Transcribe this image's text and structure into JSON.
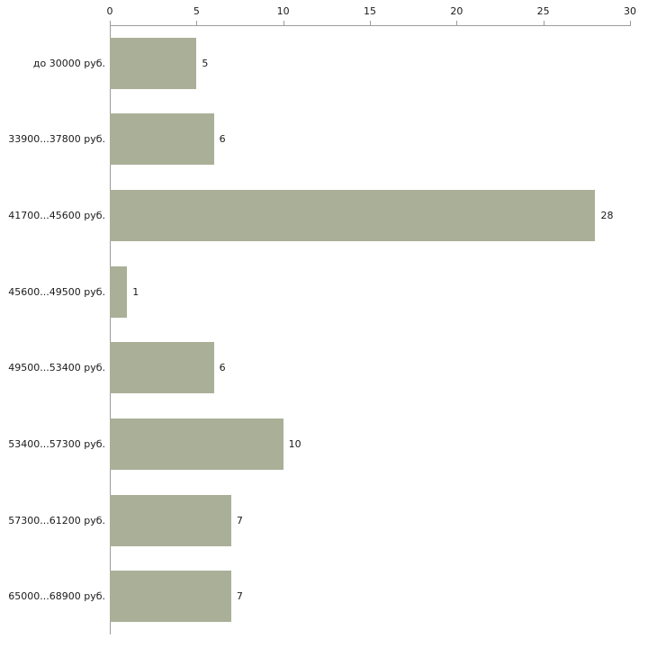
{
  "chart_data": {
    "type": "bar",
    "orientation": "horizontal",
    "title": "",
    "xlabel": "",
    "ylabel": "",
    "categories": [
      "до 30000 руб.",
      "33900...37800 руб.",
      "41700...45600 руб.",
      "45600...49500 руб.",
      "49500...53400 руб.",
      "53400...57300 руб.",
      "57300...61200 руб.",
      "65000...68900 руб."
    ],
    "values": [
      5,
      6,
      28,
      1,
      6,
      10,
      7,
      7
    ],
    "xlim": [
      0,
      30
    ],
    "xticks": [
      0,
      5,
      10,
      15,
      20,
      25,
      30
    ],
    "grid": false,
    "legend": false,
    "bar_color": "#a9b097",
    "axis_color": "#9c9c9c",
    "text_color": "#1a1a1a",
    "background_color": "#ffffff"
  }
}
